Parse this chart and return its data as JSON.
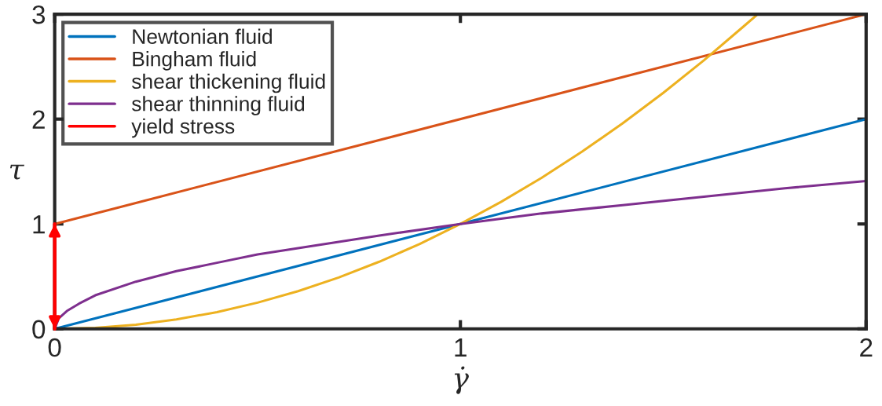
{
  "chart_data": {
    "type": "line",
    "xlabel": "γ̇",
    "ylabel": "τ",
    "xlim": [
      0,
      2
    ],
    "ylim": [
      0,
      3
    ],
    "xticks": [
      0,
      1,
      2
    ],
    "yticks": [
      0,
      1,
      2,
      3
    ],
    "grid": false,
    "legend": "top left",
    "marker": "none",
    "line_style": "solid",
    "series": [
      {
        "name": "Newtonian fluid",
        "color": "#0072bd",
        "x": [
          0,
          2
        ],
        "values": [
          0,
          2
        ]
      },
      {
        "name": "Bingham fluid",
        "color": "#d95319",
        "x": [
          0,
          2
        ],
        "values": [
          1,
          3
        ]
      },
      {
        "name": "shear thickening fluid",
        "color": "#edb120",
        "x": [
          0,
          0.1,
          0.2,
          0.3,
          0.4,
          0.5,
          0.6,
          0.7,
          0.8,
          0.9,
          1.0,
          1.1,
          1.2,
          1.3,
          1.4,
          1.5,
          1.6,
          1.7,
          1.73
        ],
        "values": [
          0,
          0.01,
          0.04,
          0.09,
          0.16,
          0.25,
          0.36,
          0.49,
          0.64,
          0.81,
          1,
          1.21,
          1.44,
          1.69,
          1.96,
          2.25,
          2.56,
          2.89,
          2.99
        ]
      },
      {
        "name": "shear thinning fluid",
        "color": "#7e2f8e",
        "x": [
          0,
          0.01,
          0.03,
          0.06,
          0.1,
          0.2,
          0.3,
          0.4,
          0.5,
          0.6,
          0.8,
          1.0,
          1.2,
          1.4,
          1.6,
          1.8,
          2.0
        ],
        "values": [
          0,
          0.1,
          0.17,
          0.24,
          0.32,
          0.45,
          0.55,
          0.63,
          0.71,
          0.77,
          0.89,
          1,
          1.1,
          1.18,
          1.26,
          1.34,
          1.41
        ]
      },
      {
        "name": "yield stress",
        "color": "#ff0000",
        "x": [
          0,
          0
        ],
        "values": [
          0,
          1
        ]
      }
    ]
  }
}
